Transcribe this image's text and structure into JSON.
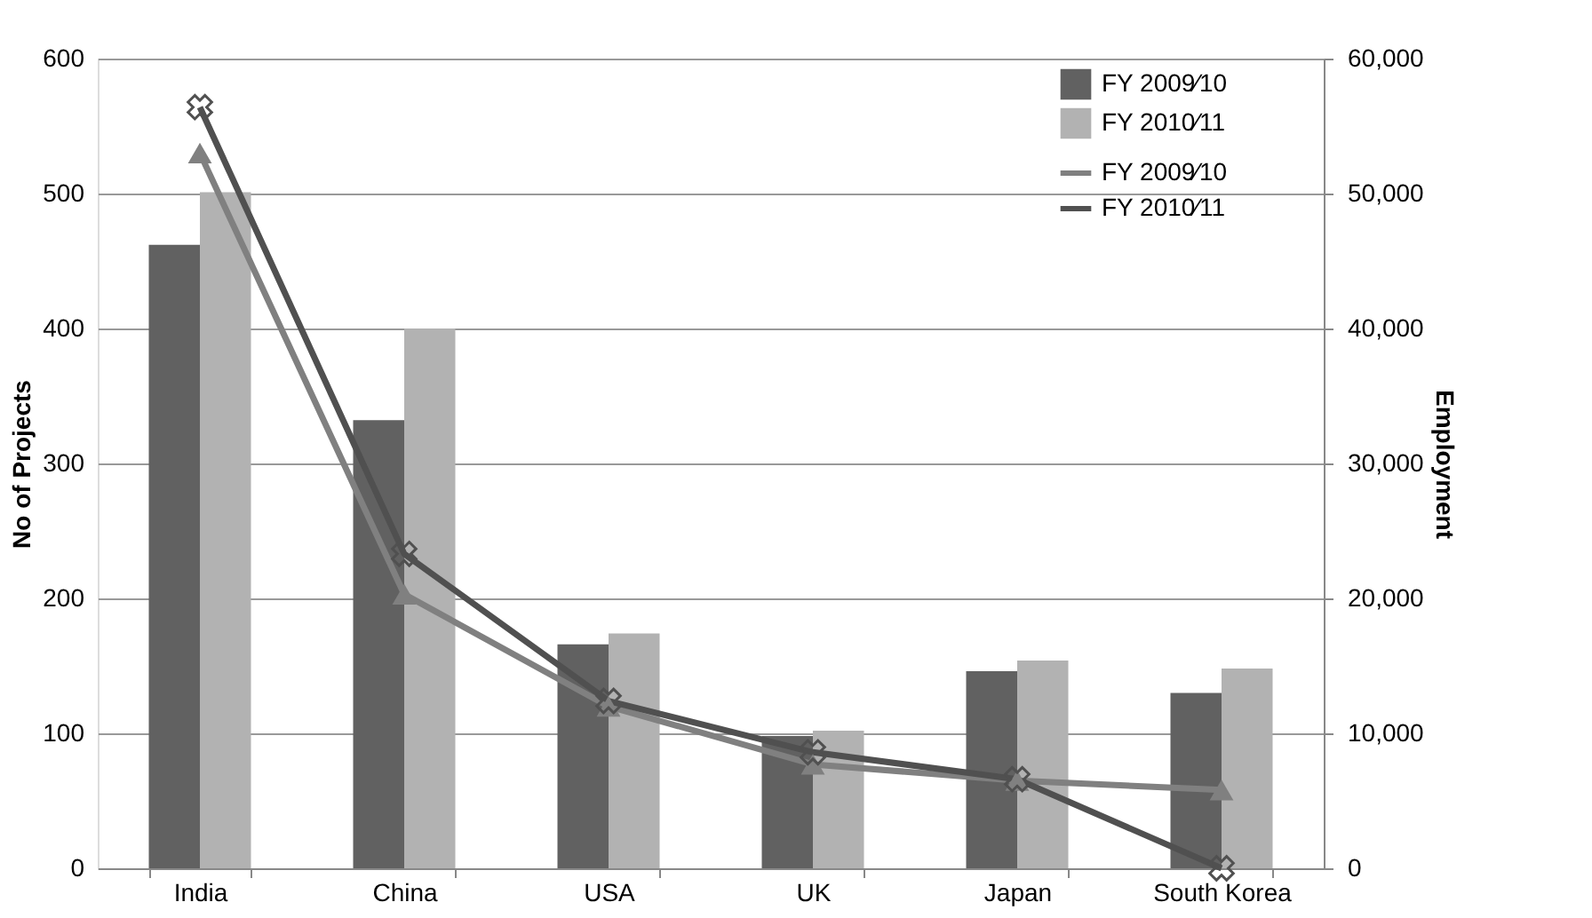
{
  "chart_data": {
    "type": "bar",
    "ylabel": "No of Projects",
    "y2label": "Employment",
    "categories": [
      "India",
      "China",
      "USA",
      "UK",
      "Japan",
      "South Korea"
    ],
    "series": [
      {
        "name": "FY 2009⁄10",
        "color": "#616161",
        "values": [
          462,
          332,
          166,
          98,
          146,
          130
        ]
      },
      {
        "name": "FY 2010⁄11",
        "color": "#b2b2b2",
        "values": [
          501,
          400,
          174,
          102,
          154,
          148
        ]
      },
      {
        "name": "FY 2009⁄10",
        "type": "line",
        "axis": "y2",
        "marker": "triangle",
        "color": "#808080",
        "values": [
          53000,
          20300,
          12000,
          7700,
          6500,
          5800
        ]
      },
      {
        "name": "FY 2010⁄11",
        "type": "line",
        "axis": "y2",
        "marker": "cross",
        "color": "#505050",
        "values": [
          56400,
          23300,
          12400,
          8600,
          6600,
          0
        ]
      }
    ],
    "ylim": [
      0,
      600
    ],
    "yticks": [
      0,
      100,
      200,
      300,
      400,
      500,
      600
    ],
    "y2lim": [
      0,
      60000
    ],
    "y2ticks": [
      {
        "value": 0,
        "label": "0"
      },
      {
        "value": 10000,
        "label": "10,000"
      },
      {
        "value": 20000,
        "label": "20,000"
      },
      {
        "value": 30000,
        "label": "30,000"
      },
      {
        "value": 40000,
        "label": "40,000"
      },
      {
        "value": 50000,
        "label": "50,000"
      },
      {
        "value": 60000,
        "label": "60,000"
      }
    ],
    "grid": "y",
    "legend": "top right"
  }
}
